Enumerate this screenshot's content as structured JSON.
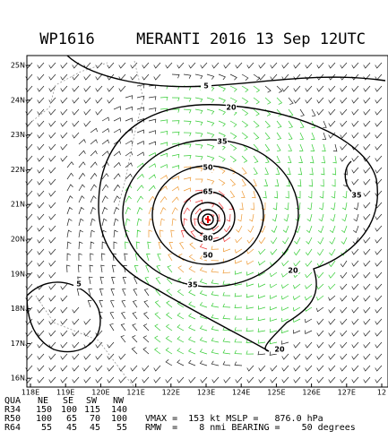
{
  "header": {
    "storm_id": "WP1616",
    "title": "MERANTI 2016 13 Sep 12UTC"
  },
  "map": {
    "lat_labels": [
      "25N",
      "24N",
      "23N",
      "22N",
      "21N",
      "20N",
      "19N",
      "18N",
      "17N",
      "16N"
    ],
    "lon_labels": [
      "118E",
      "119E",
      "120E",
      "121E",
      "122E",
      "123E",
      "124E",
      "125E",
      "126E",
      "127E",
      "12"
    ],
    "contour_labels": [
      "5",
      "20",
      "35",
      "50",
      "65",
      "80",
      "50",
      "35",
      "20",
      "20",
      "35",
      "5",
      "5"
    ]
  },
  "table": {
    "header": [
      "QUA",
      "NE",
      "SE",
      "SW",
      "NW"
    ],
    "rows": [
      [
        "R34",
        "150",
        "100",
        "115",
        "140"
      ],
      [
        "R50",
        "100",
        "65",
        "70",
        "100"
      ],
      [
        "R64",
        "55",
        "45",
        "45",
        "55"
      ]
    ]
  },
  "summary": [
    "VMAX =  153 kt MSLP =   876.0 hPa",
    "RMW  =    8 nmi BEARING =    50 degrees"
  ]
}
